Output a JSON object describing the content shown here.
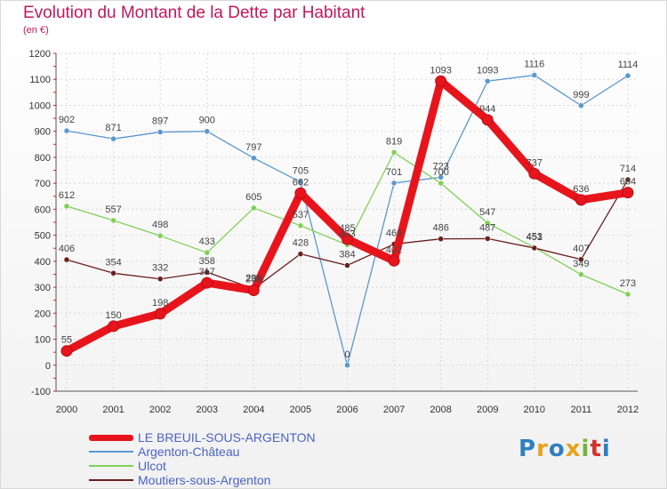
{
  "title": "Evolution du Montant de la Dette par Habitant",
  "subtitle": "(en €)",
  "logo_text": "Proxiti",
  "logo_colors": [
    "#2f7fc0",
    "#e8a21c",
    "#2f7fc0",
    "#e8a21c",
    "#74b43c",
    "#d0342c",
    "#2f7fc0"
  ],
  "chart_data": {
    "type": "line",
    "x": [
      "2000",
      "2001",
      "2002",
      "2003",
      "2004",
      "2005",
      "2006",
      "2007",
      "2008",
      "2009",
      "2010",
      "2011",
      "2012"
    ],
    "ylim": [
      -100,
      1200
    ],
    "yticks": [
      "-100",
      "0",
      "100",
      "200",
      "300",
      "400",
      "500",
      "600",
      "700",
      "800",
      "900",
      "1000",
      "1100",
      "1200"
    ],
    "grid": true,
    "legend_position": "bottom-left",
    "series": [
      {
        "name": "LE BREUIL-SOUS-ARGENTON",
        "color": "#e8141c",
        "values": [
          55,
          150,
          198,
          317,
          288,
          662,
          485,
          402,
          1093,
          944,
          737,
          636,
          664
        ],
        "labels": [
          "55",
          "150",
          "198",
          "317",
          "288",
          "662",
          "485",
          "402",
          "1093",
          "944",
          "737",
          "636",
          "664"
        ]
      },
      {
        "name": "Argenton-Château",
        "color": "#5b97cf",
        "values": [
          902,
          871,
          897,
          900,
          797,
          705,
          0,
          701,
          723,
          1093,
          1116,
          999,
          1114
        ],
        "labels": [
          "902",
          "871",
          "897",
          "900",
          "797",
          "705",
          "0",
          "701",
          "723",
          "1093",
          "1116",
          "999",
          "1114"
        ]
      },
      {
        "name": "Ulcot",
        "color": "#7fd056",
        "values": [
          612,
          557,
          498,
          433,
          605,
          537,
          463,
          819,
          700,
          547,
          453,
          349,
          273
        ],
        "labels": [
          "612",
          "557",
          "498",
          "433",
          "605",
          "537",
          "463",
          "819",
          "700",
          "547",
          "453",
          "349",
          "273"
        ]
      },
      {
        "name": "Moutiers-sous-Argenton",
        "color": "#6b1f1f",
        "values": [
          406,
          354,
          332,
          358,
          294,
          428,
          384,
          466,
          486,
          487,
          451,
          407,
          714
        ],
        "labels": [
          "406",
          "354",
          "332",
          "358",
          "294",
          "428",
          "384",
          "466",
          "486",
          "487",
          "451",
          "407",
          "714"
        ]
      }
    ]
  }
}
